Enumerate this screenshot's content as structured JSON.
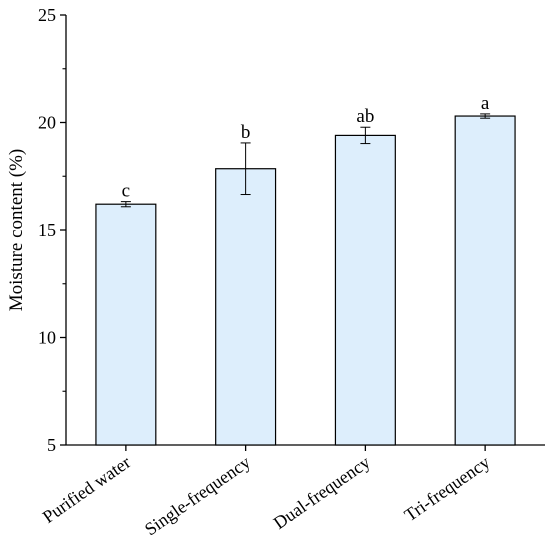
{
  "chart_data": {
    "type": "bar",
    "title": "",
    "xlabel": "",
    "ylabel": "Moisture content (%)",
    "ylim": [
      5,
      25
    ],
    "yticks": [
      5,
      10,
      15,
      20,
      25
    ],
    "categories": [
      "Purified water",
      "Single-frequency",
      "Dual-frequency",
      "Tri-frequency"
    ],
    "values": [
      16.2,
      17.85,
      19.4,
      20.3
    ],
    "errors": [
      0.12,
      1.2,
      0.38,
      0.1
    ],
    "significance_labels": [
      "c",
      "b",
      "ab",
      "a"
    ],
    "bar_color": "#ddeefc",
    "bar_edge_color": "#000000",
    "grid": false,
    "legend": "none"
  }
}
